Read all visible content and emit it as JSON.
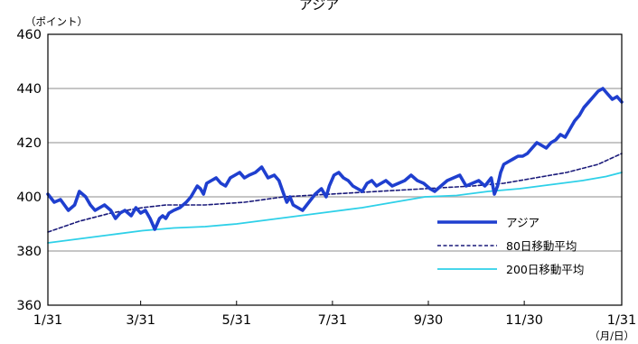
{
  "chart_data": {
    "type": "line",
    "title": "アジア",
    "ylabel": "（ポイント）",
    "xlabel": "（月/日）",
    "ylim": [
      360,
      460
    ],
    "yticks": [
      360,
      380,
      400,
      420,
      440,
      460
    ],
    "xlim": [
      0,
      365
    ],
    "xticks": [
      {
        "x": 0,
        "label": "1/31"
      },
      {
        "x": 59,
        "label": "3/31"
      },
      {
        "x": 120,
        "label": "5/31"
      },
      {
        "x": 181,
        "label": "7/31"
      },
      {
        "x": 242,
        "label": "9/30"
      },
      {
        "x": 303,
        "label": "11/30"
      },
      {
        "x": 365,
        "label": "1/31"
      }
    ],
    "grid": true,
    "legend_position": "bottom-right",
    "series": [
      {
        "name": "アジア",
        "color": "#1f3fcf",
        "style": "solid-thick",
        "x": [
          0,
          4,
          8,
          13,
          17,
          20,
          24,
          27,
          30,
          33,
          36,
          40,
          43,
          46,
          49,
          53,
          56,
          59,
          62,
          65,
          68,
          71,
          73,
          75,
          77,
          80,
          84,
          88,
          91,
          93,
          95,
          97,
          99,
          101,
          104,
          107,
          110,
          113,
          116,
          119,
          122,
          125,
          128,
          132,
          136,
          140,
          144,
          147,
          150,
          152,
          154,
          156,
          159,
          162,
          166,
          170,
          174,
          177,
          179,
          182,
          185,
          188,
          191,
          194,
          197,
          200,
          203,
          206,
          209,
          212,
          215,
          219,
          223,
          227,
          231,
          235,
          239,
          243,
          246,
          250,
          254,
          258,
          262,
          266,
          270,
          274,
          278,
          282,
          284,
          286,
          288,
          290,
          293,
          296,
          299,
          302,
          305,
          308,
          311,
          314,
          317,
          320,
          323,
          326,
          329,
          332,
          335,
          338,
          341,
          344,
          347,
          350,
          353,
          356,
          359,
          362,
          365
        ],
        "values": [
          401,
          398,
          399,
          395,
          397,
          402,
          400,
          397,
          395,
          396,
          397,
          395,
          392,
          394,
          395,
          393,
          396,
          394,
          395,
          392,
          388,
          392,
          393,
          392,
          394,
          395,
          396,
          398,
          400,
          402,
          404,
          403,
          401,
          405,
          406,
          407,
          405,
          404,
          407,
          408,
          409,
          407,
          408,
          409,
          411,
          407,
          408,
          406,
          401,
          398,
          400,
          397,
          396,
          395,
          398,
          401,
          403,
          400,
          404,
          408,
          409,
          407,
          406,
          404,
          403,
          402,
          405,
          406,
          404,
          405,
          406,
          404,
          405,
          406,
          408,
          406,
          405,
          403,
          402,
          404,
          406,
          407,
          408,
          404,
          405,
          406,
          404,
          407,
          401,
          404,
          409,
          412,
          413,
          414,
          415,
          415,
          416,
          418,
          420,
          419,
          418,
          420,
          421,
          423,
          422,
          425,
          428,
          430,
          433,
          435,
          437,
          439,
          440,
          438,
          436,
          437,
          435
        ]
      },
      {
        "name": "80日移動平均",
        "color": "#1a1a7a",
        "style": "dashed",
        "x": [
          0,
          20,
          40,
          60,
          75,
          100,
          125,
          150,
          180,
          210,
          240,
          270,
          290,
          310,
          330,
          350,
          365
        ],
        "values": [
          387,
          391,
          394,
          396,
          397,
          397,
          398,
          400,
          401,
          402,
          403,
          404,
          405,
          407,
          409,
          412,
          416
        ]
      },
      {
        "name": "200日移動平均",
        "color": "#2ed0e8",
        "style": "solid",
        "x": [
          0,
          20,
          40,
          60,
          80,
          100,
          120,
          140,
          160,
          180,
          200,
          220,
          240,
          260,
          280,
          300,
          320,
          340,
          355,
          365
        ],
        "values": [
          383,
          384.5,
          386,
          387.5,
          388.5,
          389,
          390,
          391.5,
          393,
          394.5,
          396,
          398,
          400,
          400.5,
          402,
          403,
          404.5,
          406,
          407.5,
          409
        ]
      }
    ]
  }
}
